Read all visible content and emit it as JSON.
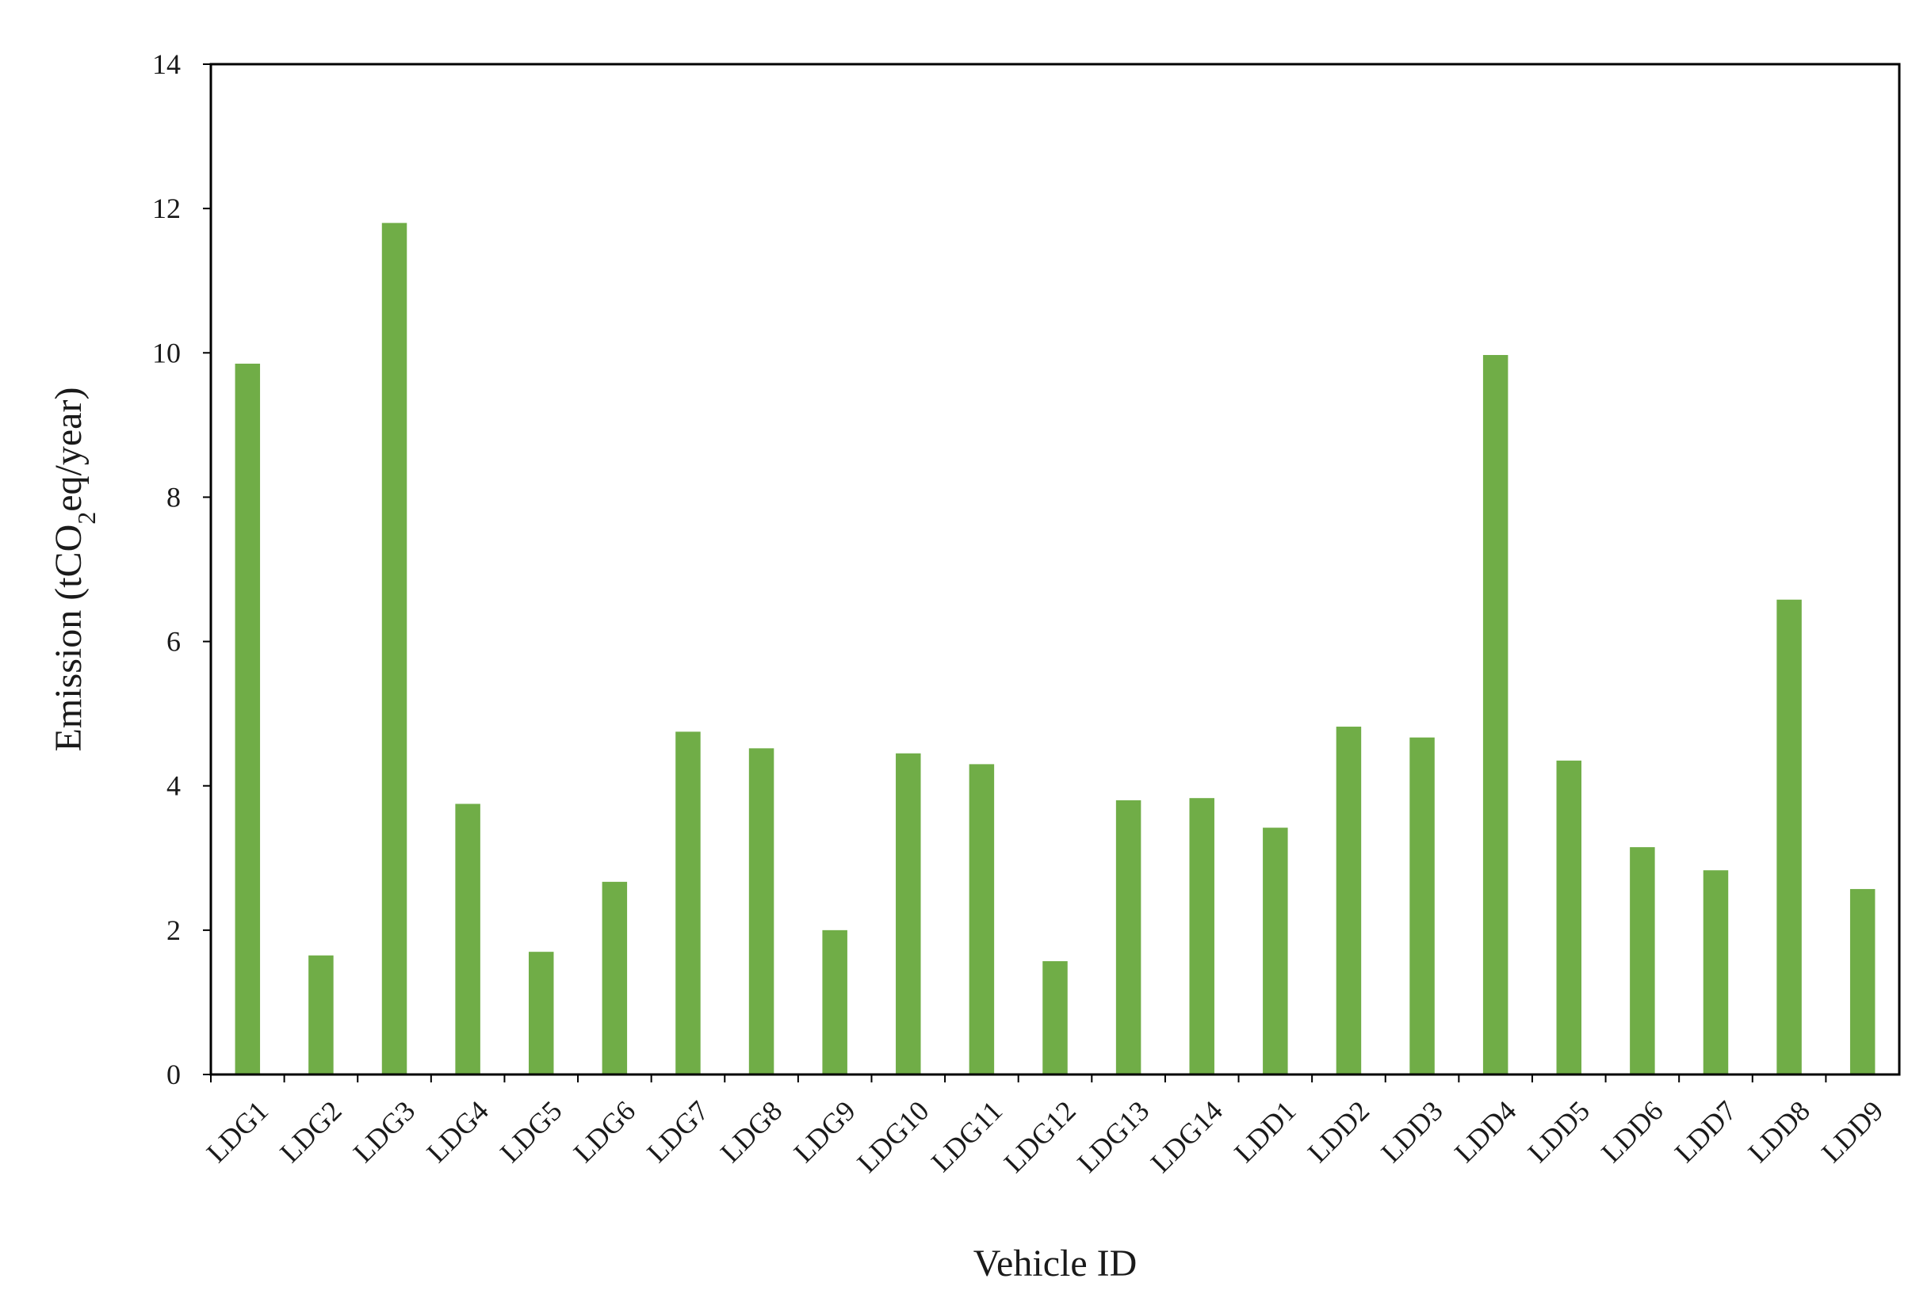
{
  "chart_data": {
    "type": "bar",
    "title": "",
    "xlabel": "Vehicle ID",
    "ylabel": {
      "prefix": "Emission (tCO",
      "subscript": "2",
      "suffix": "eq/year)"
    },
    "ylim": [
      0,
      14
    ],
    "yticks": [
      0,
      2,
      4,
      6,
      8,
      10,
      12,
      14
    ],
    "grid": false,
    "legend": "none",
    "bar_color": "#70AD47",
    "categories": [
      "LDG1",
      "LDG2",
      "LDG3",
      "LDG4",
      "LDG5",
      "LDG6",
      "LDG7",
      "LDG8",
      "LDG9",
      "LDG10",
      "LDG11",
      "LDG12",
      "LDG13",
      "LDG14",
      "LDD1",
      "LDD2",
      "LDD3",
      "LDD4",
      "LDD5",
      "LDD6",
      "LDD7",
      "LDD8",
      "LDD9"
    ],
    "values": [
      9.85,
      1.65,
      11.8,
      3.75,
      1.7,
      2.67,
      4.75,
      4.52,
      2.0,
      4.45,
      4.3,
      1.57,
      3.8,
      3.83,
      3.42,
      4.82,
      4.67,
      9.97,
      4.35,
      3.15,
      2.83,
      6.58,
      2.57
    ]
  }
}
